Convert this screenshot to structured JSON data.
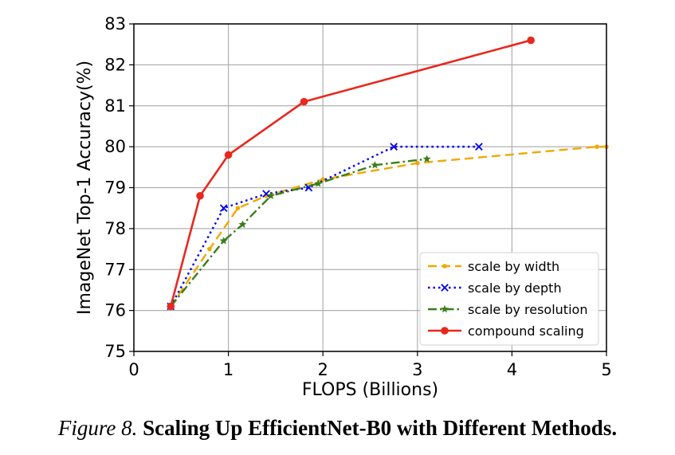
{
  "chart_data": {
    "type": "line",
    "xlabel": "FLOPS (Billions)",
    "ylabel": "ImageNet Top-1 Accuracy(%)",
    "xlim": [
      0,
      5
    ],
    "ylim": [
      75,
      83
    ],
    "xticks": [
      0,
      1,
      2,
      3,
      4,
      5
    ],
    "yticks": [
      75,
      76,
      77,
      78,
      79,
      80,
      81,
      82,
      83
    ],
    "grid": true,
    "legend_position": "lower-right",
    "series": [
      {
        "name": "scale by width",
        "color": "#f0a800",
        "line_style": "dashed",
        "marker": "dot",
        "x": [
          0.39,
          0.8,
          1.1,
          1.4,
          2.0,
          3.0,
          4.9,
          5.0
        ],
        "y": [
          76.1,
          77.5,
          78.5,
          78.8,
          79.2,
          79.6,
          80.0,
          80.0
        ]
      },
      {
        "name": "scale by depth",
        "color": "#0000ee",
        "line_style": "dotted",
        "marker": "x",
        "x": [
          0.39,
          0.95,
          1.4,
          1.85,
          2.75,
          3.65
        ],
        "y": [
          76.1,
          78.5,
          78.85,
          79.0,
          80.0,
          80.0
        ]
      },
      {
        "name": "scale by resolution",
        "color": "#3a7d1a",
        "line_style": "dashdot",
        "marker": "star",
        "x": [
          0.39,
          0.95,
          1.15,
          1.45,
          1.95,
          2.55,
          3.1
        ],
        "y": [
          76.1,
          77.7,
          78.1,
          78.8,
          79.1,
          79.55,
          79.7
        ]
      },
      {
        "name": "compound scaling",
        "color": "#e8281e",
        "line_style": "solid",
        "marker": "circle",
        "x": [
          0.39,
          0.7,
          1.0,
          1.8,
          4.2
        ],
        "y": [
          76.1,
          78.8,
          79.8,
          81.1,
          82.6
        ]
      }
    ]
  },
  "caption": {
    "figure_label": "Figure 8.",
    "title": "Scaling Up EfficientNet-B0 with Different Methods."
  }
}
